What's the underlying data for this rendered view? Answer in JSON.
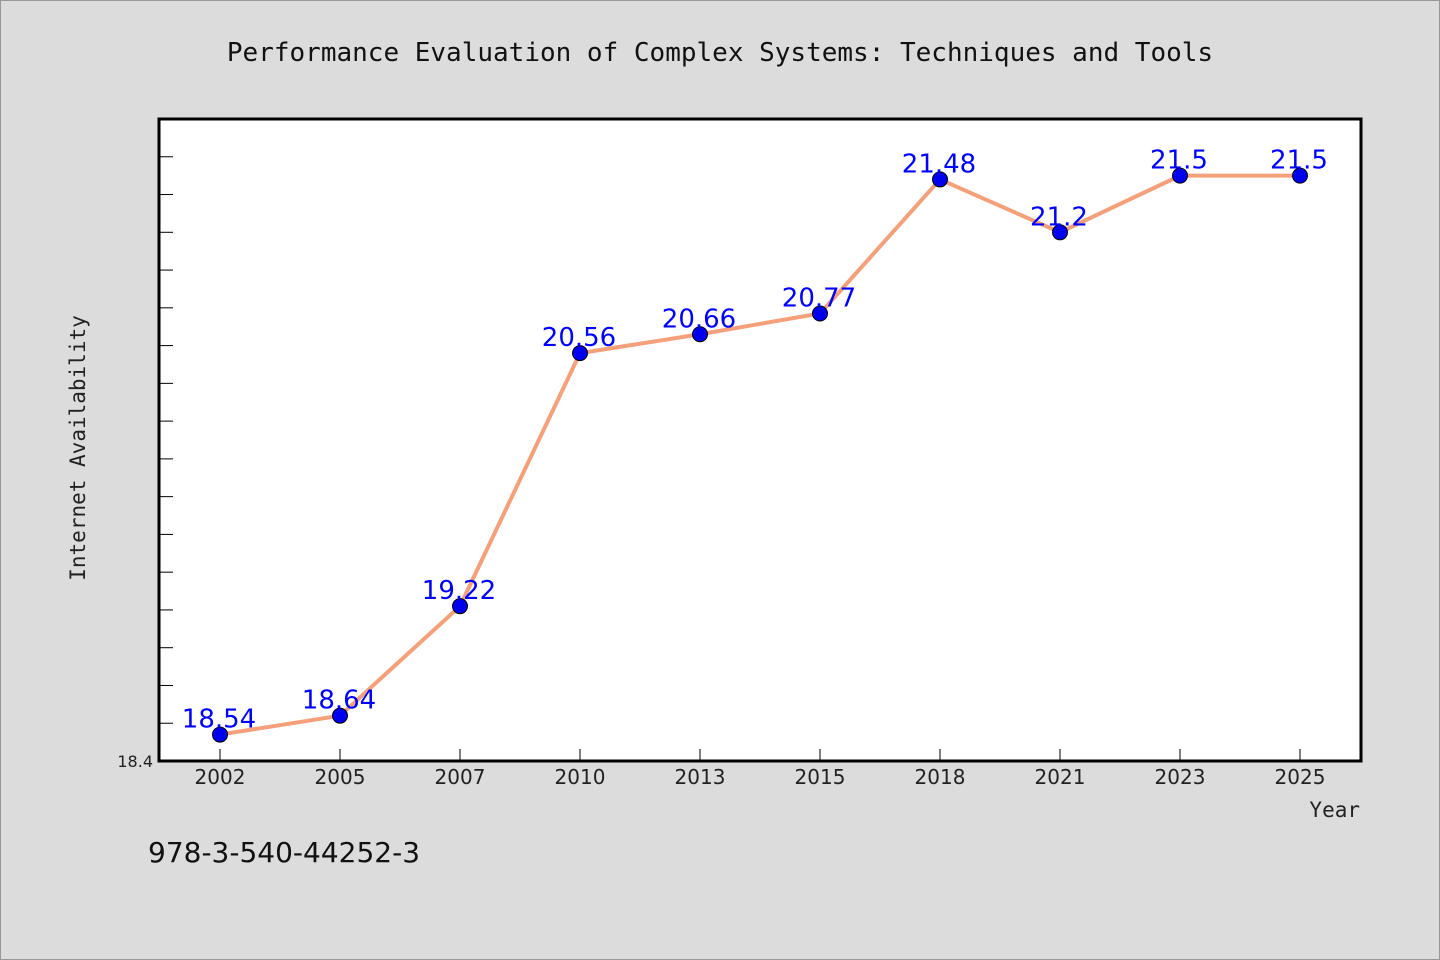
{
  "chart_data": {
    "type": "line",
    "title": "Performance Evaluation of Complex Systems: Techniques and Tools",
    "xlabel": "Year",
    "ylabel": "Internet Availability",
    "categories": [
      "2002",
      "2005",
      "2007",
      "2010",
      "2013",
      "2015",
      "2018",
      "2021",
      "2023",
      "2025"
    ],
    "series": [
      {
        "values": [
          18.54,
          18.64,
          19.22,
          20.56,
          20.66,
          20.77,
          21.48,
          21.2,
          21.5,
          21.5
        ]
      }
    ],
    "data_labels": [
      "18.54",
      "18.64",
      "19.22",
      "20.56",
      "20.66",
      "20.77",
      "21.48",
      "21.2",
      "21.5",
      "21.5"
    ],
    "ylim": [
      18.4,
      21.8
    ],
    "yticks_labeled": [
      "18.4"
    ],
    "grid": false,
    "legend": "none",
    "colors": {
      "line": "#f4a07a",
      "marker": "#0000ee",
      "data_label": "#0000ff",
      "background": "#dcdcdc",
      "plot_area": "#ffffff"
    }
  },
  "footer": {
    "isbn": "978-3-540-44252-3"
  }
}
